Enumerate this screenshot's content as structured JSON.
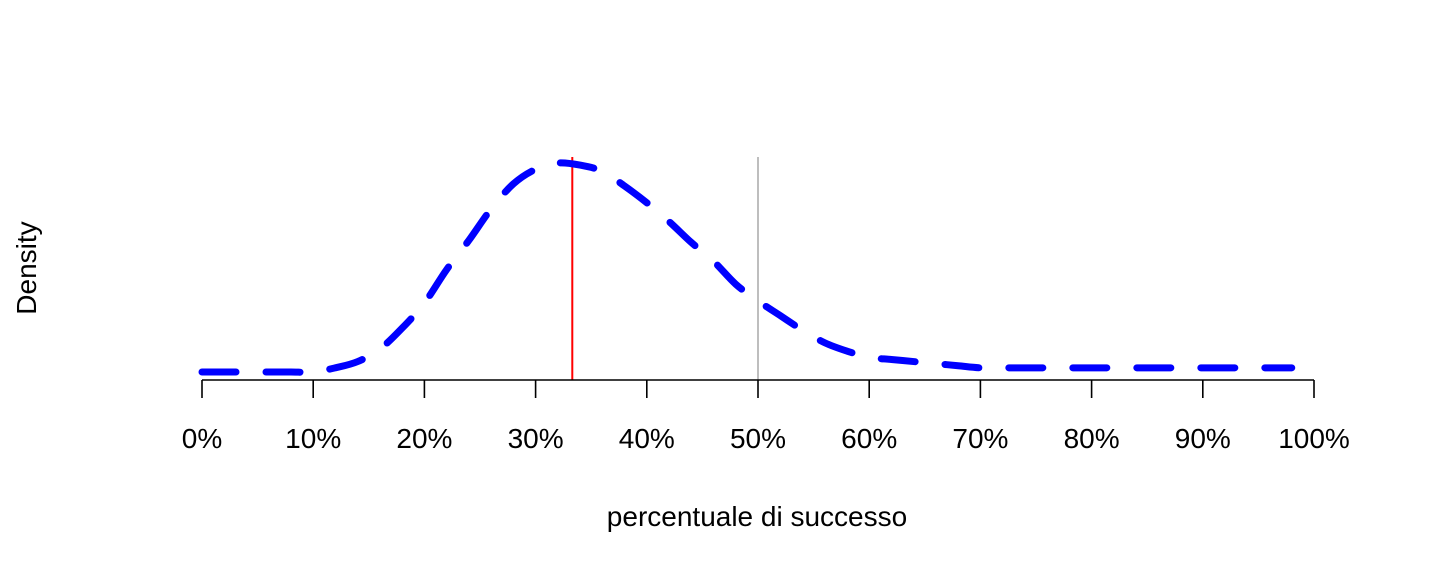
{
  "chart_data": {
    "type": "line",
    "title": "",
    "xlabel": "percentuale di successo",
    "ylabel": "Density",
    "xlim": [
      0,
      1
    ],
    "x_ticks": [
      0,
      0.1,
      0.2,
      0.3,
      0.4,
      0.5,
      0.6,
      0.7,
      0.8,
      0.9,
      1.0
    ],
    "x_tick_labels": [
      "0%",
      "10%",
      "20%",
      "30%",
      "40%",
      "50%",
      "60%",
      "70%",
      "80%",
      "90%",
      "100%"
    ],
    "grid": false,
    "legend": "none",
    "series": [
      {
        "style": "dashed",
        "color": "#0000ff",
        "x": [
          0.0,
          0.02,
          0.04,
          0.06,
          0.08,
          0.1,
          0.12,
          0.14,
          0.16,
          0.18,
          0.2,
          0.22,
          0.24,
          0.26,
          0.28,
          0.3,
          0.32,
          0.34,
          0.36,
          0.38,
          0.4,
          0.42,
          0.44,
          0.46,
          0.48,
          0.5,
          0.52,
          0.54,
          0.56,
          0.58,
          0.6,
          0.62,
          0.64,
          0.66,
          0.68,
          0.7,
          0.72,
          0.74,
          0.76,
          0.78,
          0.8,
          0.82,
          0.84,
          0.86,
          0.88,
          0.9,
          0.92,
          0.94,
          0.96,
          0.98
        ],
        "y": [
          0.0,
          0.0,
          0.0,
          0.0,
          0.0,
          0.0,
          0.02,
          0.05,
          0.11,
          0.21,
          0.33,
          0.49,
          0.63,
          0.78,
          0.9,
          0.97,
          1.0,
          0.99,
          0.96,
          0.89,
          0.81,
          0.72,
          0.62,
          0.53,
          0.42,
          0.34,
          0.27,
          0.2,
          0.14,
          0.1,
          0.07,
          0.06,
          0.05,
          0.04,
          0.03,
          0.02,
          0.02,
          0.02,
          0.02,
          0.02,
          0.02,
          0.02,
          0.02,
          0.02,
          0.02,
          0.02,
          0.02,
          0.02,
          0.02,
          0.02
        ]
      }
    ],
    "vertical_lines": [
      {
        "x": 0.333,
        "color": "#ff0000"
      },
      {
        "x": 0.5,
        "color": "#bebebe"
      }
    ]
  }
}
